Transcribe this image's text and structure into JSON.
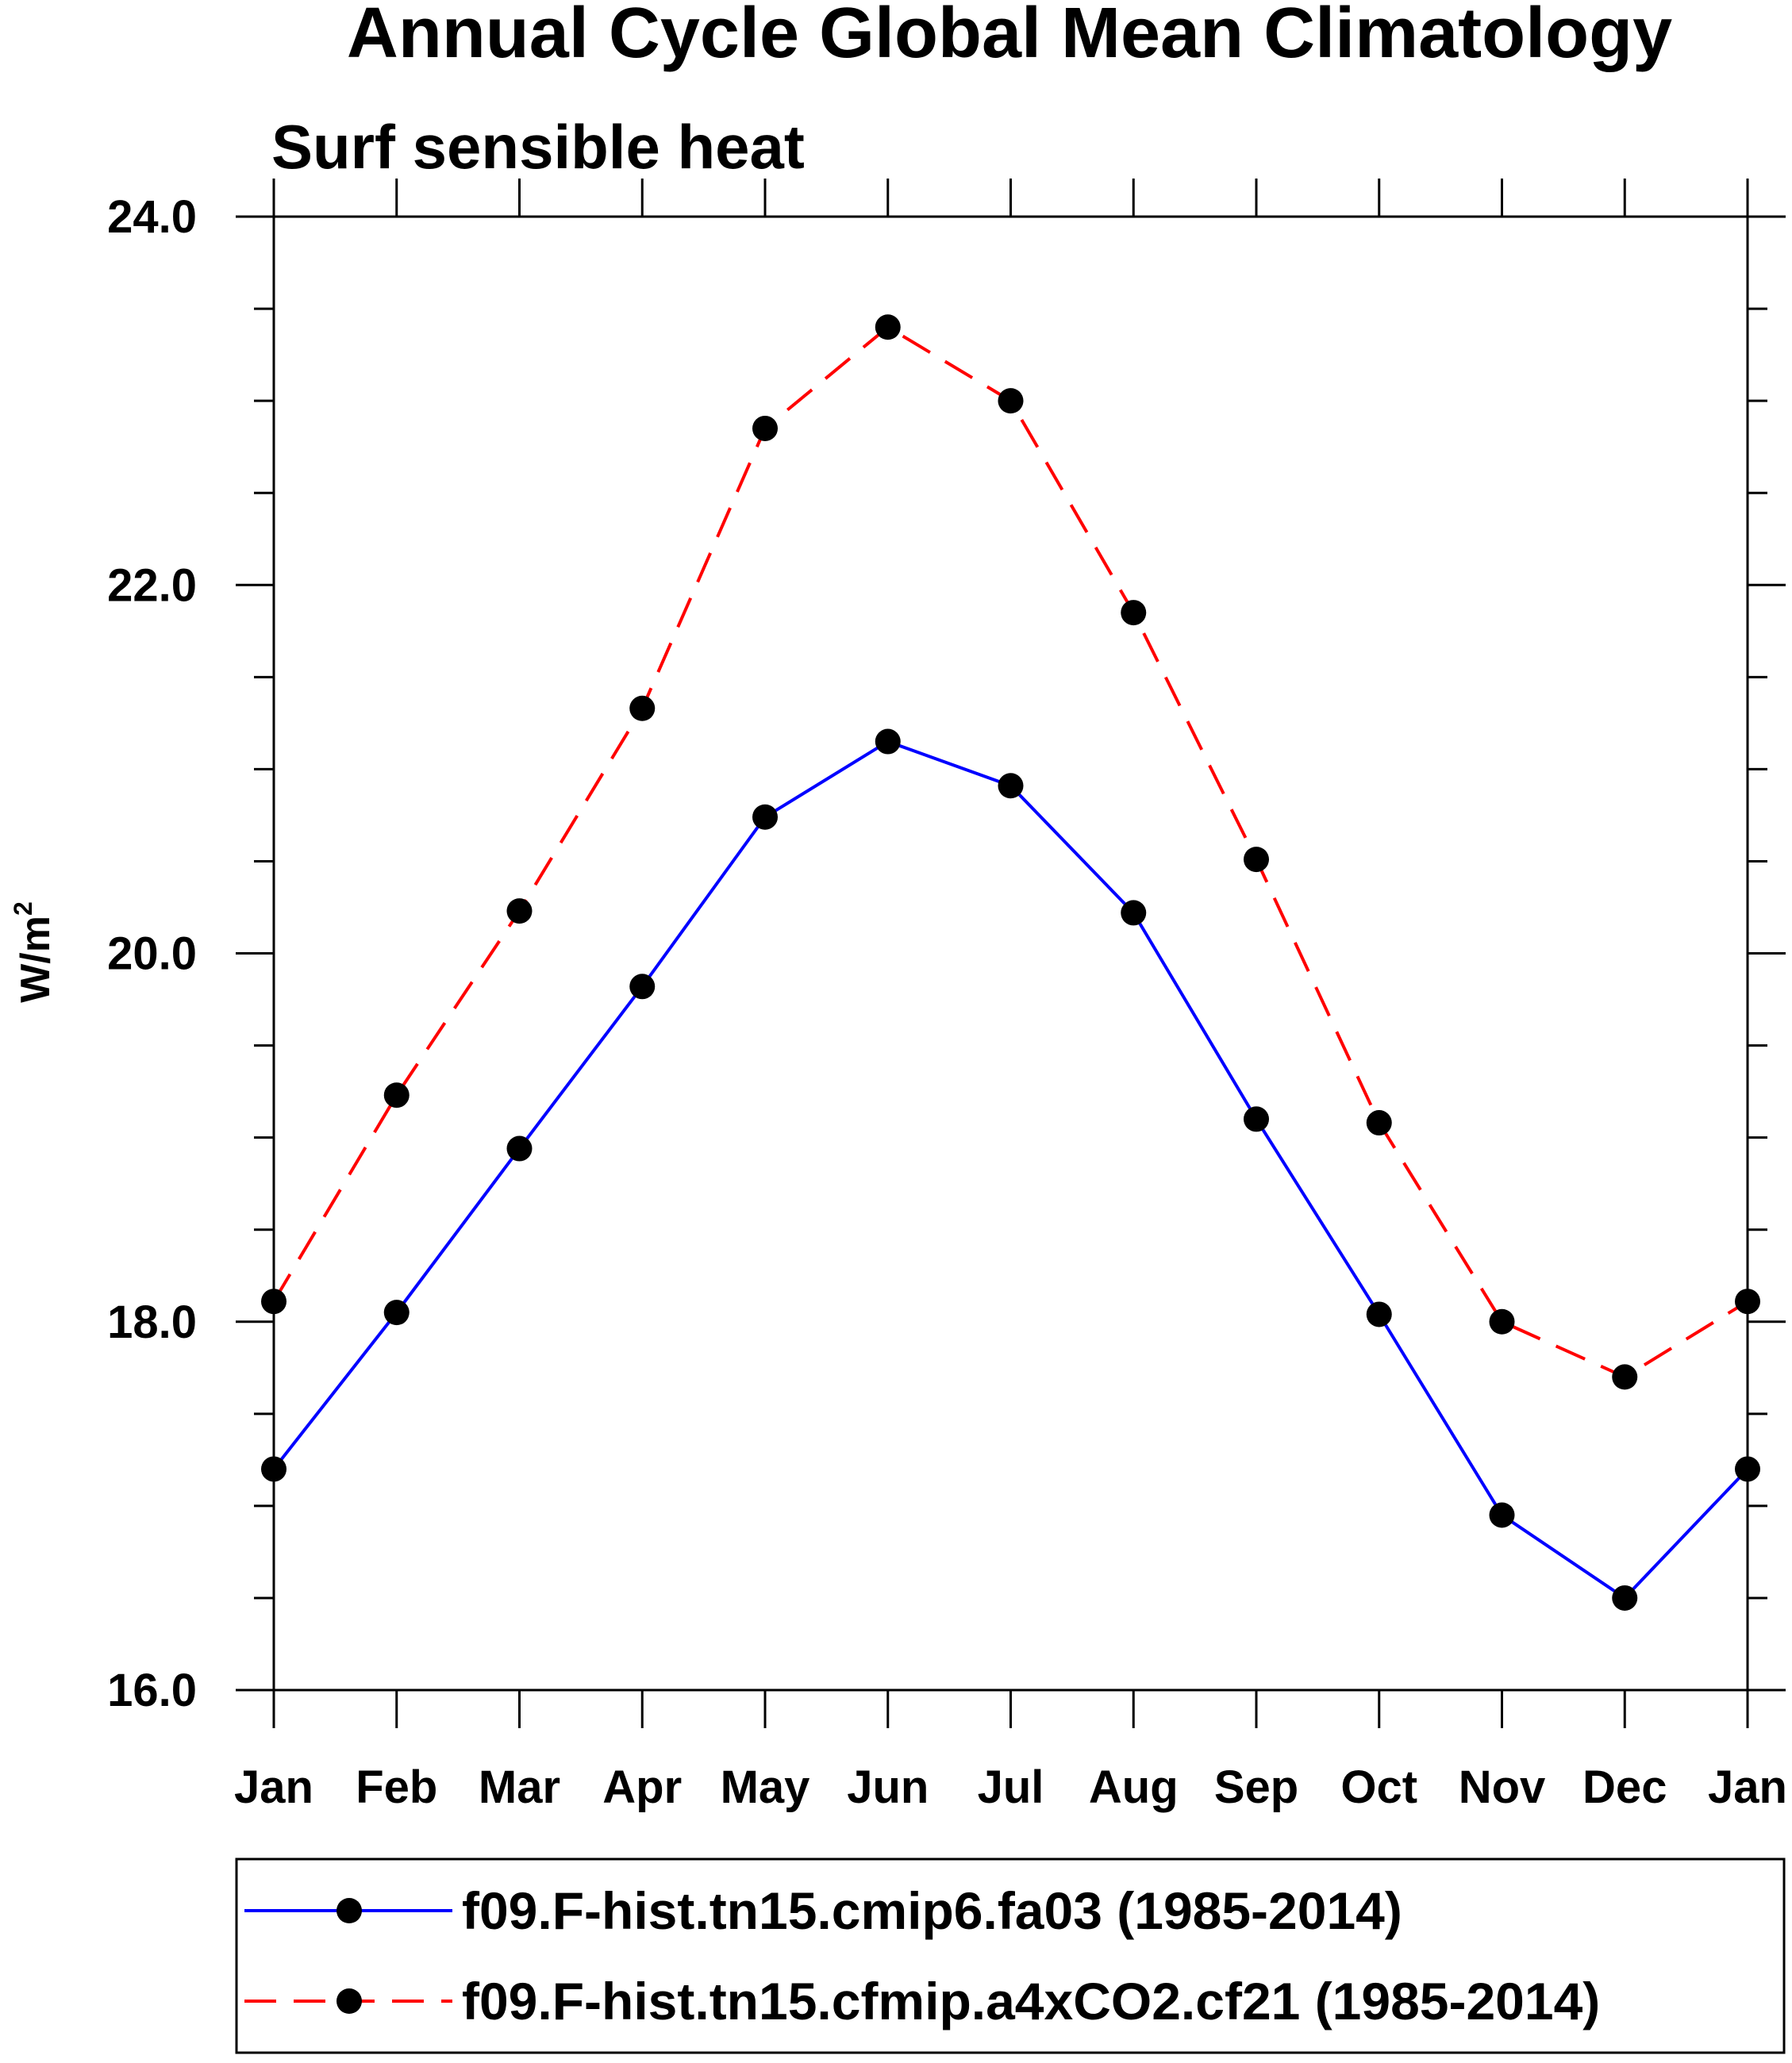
{
  "chart_data": {
    "type": "line",
    "title": "Annual Cycle Global Mean Climatology",
    "subtitle": "Surf sensible heat",
    "ylabel_base": "W/m",
    "ylabel_sup": "2",
    "xlabel": "",
    "categories": [
      "Jan",
      "Feb",
      "Mar",
      "Apr",
      "May",
      "Jun",
      "Jul",
      "Aug",
      "Sep",
      "Oct",
      "Nov",
      "Dec",
      "Jan"
    ],
    "ylim": [
      16.0,
      24.0
    ],
    "yticks": [
      "16.0",
      "18.0",
      "20.0",
      "22.0",
      "24.0"
    ],
    "grid": false,
    "legend_position": "bottom",
    "series": [
      {
        "name": "f09.F-hist.tn15.cmip6.fa03 (1985-2014)",
        "color": "#0000ff",
        "dash": "solid",
        "marker": "filled-circle",
        "values": [
          17.2,
          18.05,
          18.94,
          19.82,
          20.74,
          21.15,
          20.91,
          20.22,
          19.1,
          18.04,
          16.95,
          16.5,
          17.2
        ]
      },
      {
        "name": "f09.F-hist.tn15.cfmip.a4xCO2.cf21 (1985-2014)",
        "color": "#ff0000",
        "dash": "dashed",
        "marker": "filled-circle",
        "values": [
          18.11,
          19.23,
          20.23,
          21.33,
          22.85,
          23.4,
          23.0,
          21.85,
          20.51,
          19.08,
          18.0,
          17.7,
          18.11
        ]
      }
    ]
  }
}
